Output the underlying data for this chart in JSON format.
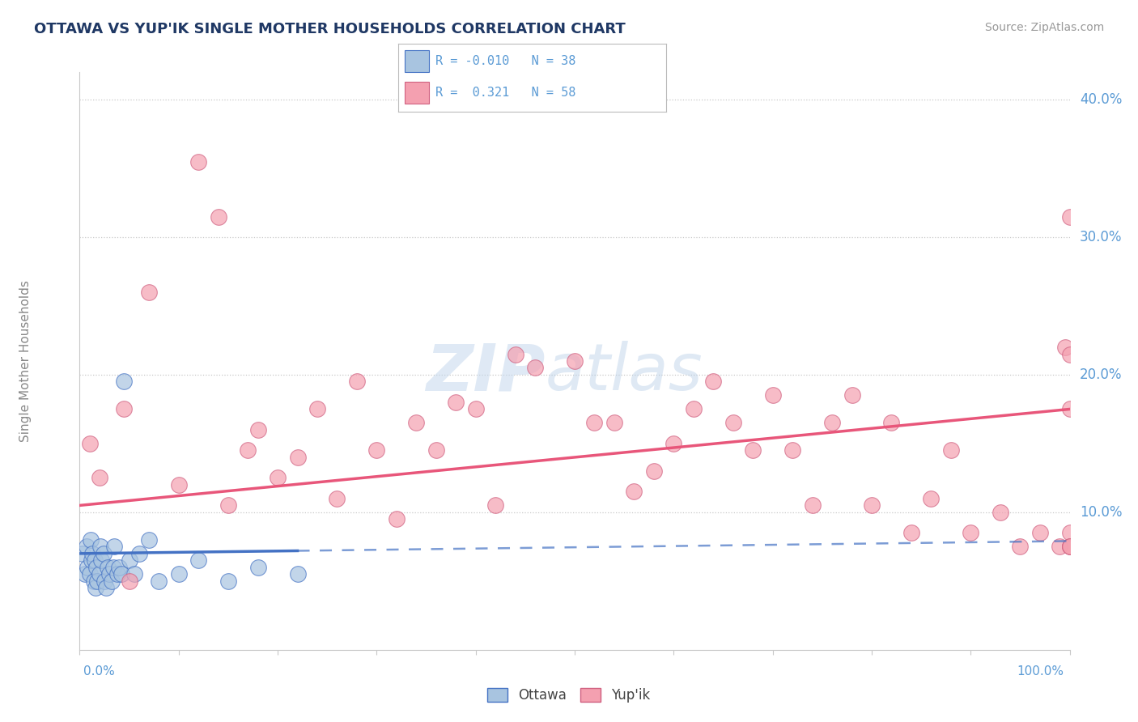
{
  "title": "OTTAWA VS YUP'IK SINGLE MOTHER HOUSEHOLDS CORRELATION CHART",
  "source": "Source: ZipAtlas.com",
  "ylabel": "Single Mother Households",
  "ottawa_color": "#a8c4e0",
  "yupik_color": "#f4a0b0",
  "trend_ottawa_color": "#4472c4",
  "trend_yupik_color": "#e8567a",
  "grid_color": "#c8c8c8",
  "title_color": "#1f3864",
  "axis_label_color": "#5b9bd5",
  "ottawa_x": [
    0.3,
    0.5,
    0.7,
    0.8,
    1.0,
    1.1,
    1.2,
    1.3,
    1.4,
    1.5,
    1.6,
    1.7,
    1.8,
    2.0,
    2.1,
    2.2,
    2.4,
    2.5,
    2.7,
    2.8,
    3.0,
    3.2,
    3.4,
    3.5,
    3.8,
    4.0,
    4.2,
    4.5,
    5.0,
    5.5,
    6.0,
    7.0,
    8.0,
    10.0,
    12.0,
    15.0,
    18.0,
    22.0
  ],
  "ottawa_y": [
    7.0,
    5.5,
    7.5,
    6.0,
    5.5,
    8.0,
    6.5,
    7.0,
    5.0,
    6.5,
    4.5,
    6.0,
    5.0,
    5.5,
    7.5,
    6.5,
    7.0,
    5.0,
    4.5,
    6.0,
    5.5,
    5.0,
    6.0,
    7.5,
    5.5,
    6.0,
    5.5,
    19.5,
    6.5,
    5.5,
    7.0,
    8.0,
    5.0,
    5.5,
    6.5,
    5.0,
    6.0,
    5.5
  ],
  "yupik_x": [
    1.0,
    2.0,
    4.5,
    5.0,
    7.0,
    10.0,
    12.0,
    14.0,
    15.0,
    17.0,
    18.0,
    20.0,
    22.0,
    24.0,
    26.0,
    28.0,
    30.0,
    32.0,
    34.0,
    36.0,
    38.0,
    40.0,
    42.0,
    44.0,
    46.0,
    50.0,
    52.0,
    54.0,
    56.0,
    58.0,
    60.0,
    62.0,
    64.0,
    66.0,
    68.0,
    70.0,
    72.0,
    74.0,
    76.0,
    78.0,
    80.0,
    82.0,
    84.0,
    86.0,
    88.0,
    90.0,
    93.0,
    95.0,
    97.0,
    99.0,
    99.5,
    100.0,
    100.0,
    100.0,
    100.0,
    100.0,
    100.0,
    100.0
  ],
  "yupik_y": [
    15.0,
    12.5,
    17.5,
    5.0,
    26.0,
    12.0,
    35.5,
    31.5,
    10.5,
    14.5,
    16.0,
    12.5,
    14.0,
    17.5,
    11.0,
    19.5,
    14.5,
    9.5,
    16.5,
    14.5,
    18.0,
    17.5,
    10.5,
    21.5,
    20.5,
    21.0,
    16.5,
    16.5,
    11.5,
    13.0,
    15.0,
    17.5,
    19.5,
    16.5,
    14.5,
    18.5,
    14.5,
    10.5,
    16.5,
    18.5,
    10.5,
    16.5,
    8.5,
    11.0,
    14.5,
    8.5,
    10.0,
    7.5,
    8.5,
    7.5,
    22.0,
    7.5,
    17.5,
    21.5,
    31.5,
    8.5,
    7.5,
    7.5
  ],
  "ottawa_trend_x": [
    0,
    22
  ],
  "ottawa_trend_y_start": 7.0,
  "ottawa_trend_y_end": 7.2,
  "yupik_trend_x": [
    0,
    100
  ],
  "yupik_trend_y_start": 10.5,
  "yupik_trend_y_end": 17.5,
  "xlim": [
    0,
    100
  ],
  "ylim": [
    0,
    42
  ],
  "yticks": [
    0,
    10,
    20,
    30,
    40
  ],
  "ytick_labels": [
    "",
    "10.0%",
    "20.0%",
    "30.0%",
    "40.0%"
  ]
}
